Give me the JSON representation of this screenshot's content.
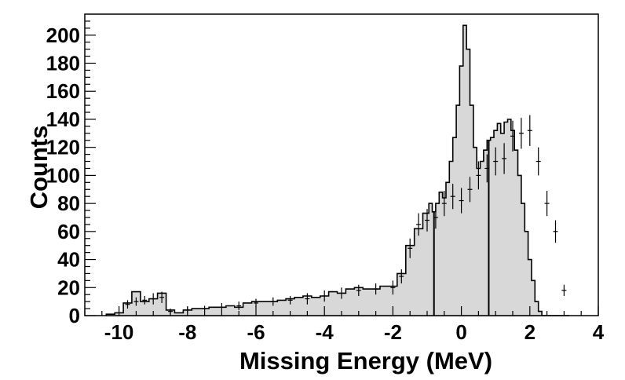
{
  "chart_data": {
    "type": "bar",
    "title": "",
    "xlabel": "Missing Energy (MeV)",
    "ylabel": "Counts",
    "xlim": [
      -11,
      4
    ],
    "ylim": [
      0,
      215
    ],
    "x_ticks": [
      -10,
      -8,
      -6,
      -4,
      -2,
      0,
      2,
      4
    ],
    "x_tick_labels": [
      "-10",
      "-8",
      "-6",
      "-4",
      "-2",
      "0",
      "2",
      "4"
    ],
    "y_ticks": [
      0,
      20,
      40,
      60,
      80,
      100,
      120,
      140,
      160,
      180,
      200
    ],
    "y_tick_labels": [
      "0",
      "20",
      "40",
      "60",
      "80",
      "100",
      "120",
      "140",
      "160",
      "180",
      "200"
    ],
    "grid": false,
    "legend": "none",
    "cut_lines_x": [
      -0.8,
      0.8
    ],
    "series": [
      {
        "kind": "filled-histogram",
        "fill_color": "#d8d8d8",
        "line_color": "#000000",
        "x": [
          -10.25,
          -10.0,
          -9.75,
          -9.5,
          -9.25,
          -9.0,
          -8.75,
          -8.5,
          -8.25,
          -8.0,
          -7.75,
          -7.5,
          -7.25,
          -7.0,
          -6.75,
          -6.5,
          -6.25,
          -6.0,
          -5.75,
          -5.5,
          -5.25,
          -5.0,
          -4.75,
          -4.5,
          -4.25,
          -4.0,
          -3.75,
          -3.5,
          -3.25,
          -3.0,
          -2.75,
          -2.5,
          -2.25,
          -2.0,
          -1.75,
          -1.5,
          -1.25,
          -1.0,
          -0.9,
          -0.8,
          -0.7,
          -0.6,
          -0.5,
          -0.4,
          -0.3,
          -0.2,
          -0.1,
          0.0,
          0.1,
          0.2,
          0.3,
          0.4,
          0.5,
          0.6,
          0.7,
          0.8,
          0.9,
          1.0,
          1.1,
          1.2,
          1.3,
          1.4,
          1.5,
          1.6,
          1.7,
          1.8,
          1.9,
          2.0,
          2.1,
          2.2,
          2.3,
          2.4,
          2.5,
          2.6,
          2.7,
          2.8,
          2.9,
          3.0,
          3.1
        ],
        "values": [
          1,
          2,
          9,
          17,
          10,
          12,
          16,
          4,
          2,
          4,
          5,
          5,
          6,
          6,
          7,
          6,
          9,
          10,
          10,
          10,
          11,
          12,
          13,
          14,
          13,
          14,
          17,
          16,
          19,
          20,
          19,
          19,
          21,
          21,
          30,
          50,
          62,
          73,
          80,
          74,
          80,
          88,
          84,
          95,
          110,
          127,
          150,
          178,
          207,
          190,
          150,
          120,
          105,
          110,
          118,
          125,
          127,
          132,
          137,
          130,
          138,
          140,
          132,
          118,
          100,
          80,
          60,
          40,
          25,
          10,
          3,
          0,
          0,
          0,
          0,
          0,
          0,
          0,
          0
        ]
      },
      {
        "kind": "data-points-with-errors",
        "color": "#000000",
        "x": [
          -9.75,
          -9.5,
          -9.25,
          -9.0,
          -8.75,
          -8.5,
          -8.0,
          -7.5,
          -7.0,
          -6.5,
          -6.0,
          -5.5,
          -5.0,
          -4.5,
          -4.0,
          -3.5,
          -3.0,
          -2.5,
          -2.0,
          -1.75,
          -1.5,
          -1.25,
          -1.0,
          -0.75,
          -0.5,
          -0.25,
          0.0,
          0.25,
          0.5,
          0.75,
          1.0,
          1.25,
          1.5,
          1.75,
          2.0,
          2.25,
          2.5,
          2.75,
          3.0
        ],
        "values": [
          8,
          10,
          11,
          12,
          13,
          3,
          4,
          5,
          6,
          7,
          9,
          10,
          11,
          12,
          14,
          16,
          18,
          19,
          20,
          28,
          48,
          65,
          68,
          70,
          80,
          85,
          82,
          90,
          100,
          105,
          110,
          112,
          128,
          130,
          132,
          110,
          80,
          60,
          18
        ],
        "errors": [
          3,
          3,
          3,
          4,
          4,
          2,
          2,
          2,
          3,
          3,
          3,
          3,
          3,
          4,
          4,
          4,
          4,
          4,
          5,
          5,
          7,
          8,
          8,
          8,
          9,
          9,
          9,
          9,
          10,
          10,
          10,
          11,
          11,
          11,
          11,
          10,
          9,
          8,
          4
        ]
      }
    ]
  }
}
